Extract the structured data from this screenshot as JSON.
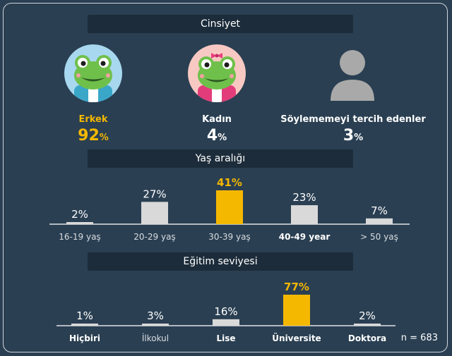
{
  "sections": {
    "gender_title": "Cinsiyet",
    "age_title": "Yaş aralığı",
    "education_title": "Eğitim seviyesi"
  },
  "gender": [
    {
      "label": "Erkek",
      "pct": "92",
      "unit": "%",
      "highlight": true,
      "icon": "frog-boy-avatar"
    },
    {
      "label": "Kadın",
      "pct": "4",
      "unit": "%",
      "highlight": false,
      "icon": "frog-girl-avatar"
    },
    {
      "label": "Söylememeyi tercih edenler",
      "pct": "3",
      "unit": "%",
      "highlight": false,
      "icon": "person-silhouette-icon"
    }
  ],
  "n_label": "n = 683",
  "colors": {
    "accent": "#f5b800",
    "bar": "#d9d9d9",
    "header_bg": "#1c2c3a",
    "background": "#2a3f52"
  },
  "chart_data": [
    {
      "type": "bar",
      "title": "Yaş aralığı",
      "categories": [
        "16-19 yaş",
        "20-29 yaş",
        "30-39 yaş",
        "40-49 year",
        "> 50 yaş"
      ],
      "values": [
        2,
        27,
        41,
        23,
        7
      ],
      "value_labels": [
        "2%",
        "27%",
        "41%",
        "23%",
        "7%"
      ],
      "highlight_index": 2,
      "bold_indices": [
        3
      ]
    },
    {
      "type": "bar",
      "title": "Eğitim seviyesi",
      "categories": [
        "Hiçbiri",
        "İlkokul",
        "Lise",
        "Üniversite",
        "Doktora"
      ],
      "values": [
        1,
        3,
        16,
        77,
        2
      ],
      "value_labels": [
        "1%",
        "3%",
        "16%",
        "77%",
        "2%"
      ],
      "highlight_index": 3,
      "bold_indices": [
        0,
        2,
        3,
        4
      ]
    }
  ]
}
